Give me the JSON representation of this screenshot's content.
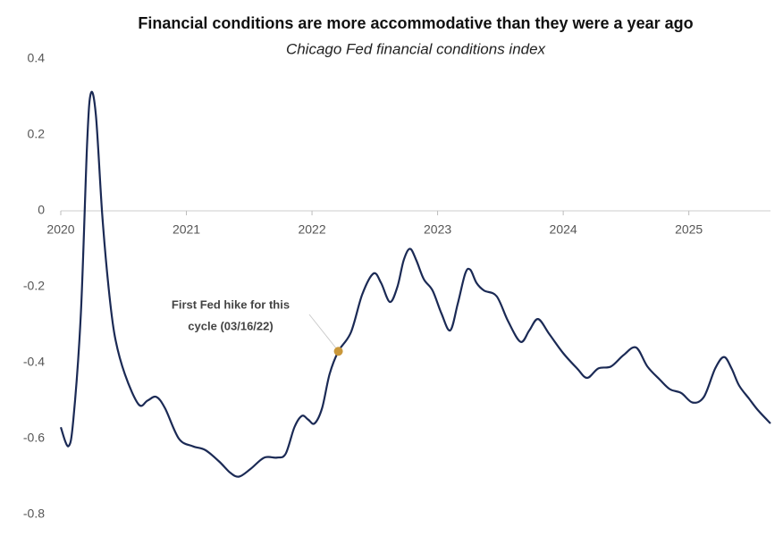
{
  "chart_data": {
    "type": "line",
    "title": "Financial conditions are more accommodative than they were a year ago",
    "subtitle": "Chicago Fed financial conditions index",
    "xlim": [
      2020,
      2025.65
    ],
    "xticks": [
      2020,
      2021,
      2022,
      2023,
      2024,
      2025
    ],
    "ylim": [
      -0.8,
      0.4
    ],
    "yticks": [
      0.4,
      0.2,
      0,
      -0.2,
      -0.4,
      -0.6,
      -0.8
    ],
    "x": [
      2020.0,
      2020.06,
      2020.1,
      2020.16,
      2020.21,
      2020.24,
      2020.28,
      2020.33,
      2020.38,
      2020.43,
      2020.51,
      2020.62,
      2020.69,
      2020.76,
      2020.83,
      2020.94,
      2021.05,
      2021.15,
      2021.26,
      2021.35,
      2021.42,
      2021.51,
      2021.62,
      2021.72,
      2021.79,
      2021.86,
      2021.92,
      2021.97,
      2022.02,
      2022.08,
      2022.14,
      2022.21,
      2022.31,
      2022.4,
      2022.49,
      2022.55,
      2022.62,
      2022.68,
      2022.73,
      2022.78,
      2022.83,
      2022.89,
      2022.96,
      2023.03,
      2023.1,
      2023.16,
      2023.22,
      2023.26,
      2023.31,
      2023.37,
      2023.47,
      2023.56,
      2023.66,
      2023.73,
      2023.8,
      2023.89,
      2024.0,
      2024.11,
      2024.19,
      2024.28,
      2024.38,
      2024.48,
      2024.58,
      2024.67,
      2024.77,
      2024.85,
      2024.94,
      2025.03,
      2025.12,
      2025.21,
      2025.28,
      2025.34,
      2025.4,
      2025.48,
      2025.55,
      2025.65
    ],
    "series": [
      {
        "color": "#1b2a55",
        "values": [
          -0.57,
          -0.62,
          -0.55,
          -0.27,
          0.18,
          0.31,
          0.25,
          -0.01,
          -0.2,
          -0.33,
          -0.43,
          -0.51,
          -0.5,
          -0.49,
          -0.52,
          -0.6,
          -0.62,
          -0.63,
          -0.66,
          -0.69,
          -0.7,
          -0.68,
          -0.65,
          -0.65,
          -0.64,
          -0.57,
          -0.54,
          -0.55,
          -0.56,
          -0.52,
          -0.43,
          -0.37,
          -0.32,
          -0.22,
          -0.165,
          -0.19,
          -0.24,
          -0.2,
          -0.13,
          -0.1,
          -0.13,
          -0.18,
          -0.21,
          -0.27,
          -0.315,
          -0.245,
          -0.165,
          -0.155,
          -0.19,
          -0.21,
          -0.225,
          -0.29,
          -0.345,
          -0.315,
          -0.285,
          -0.325,
          -0.375,
          -0.415,
          -0.44,
          -0.415,
          -0.41,
          -0.38,
          -0.36,
          -0.41,
          -0.445,
          -0.47,
          -0.48,
          -0.505,
          -0.49,
          -0.415,
          -0.385,
          -0.415,
          -0.46,
          -0.495,
          -0.525,
          -0.56
        ]
      }
    ],
    "annotations": [
      {
        "lines": [
          "First Fed hike for this",
          "cycle (03/16/22)"
        ],
        "x": 2022.21,
        "y": -0.37,
        "color": "#c9973a"
      }
    ]
  }
}
